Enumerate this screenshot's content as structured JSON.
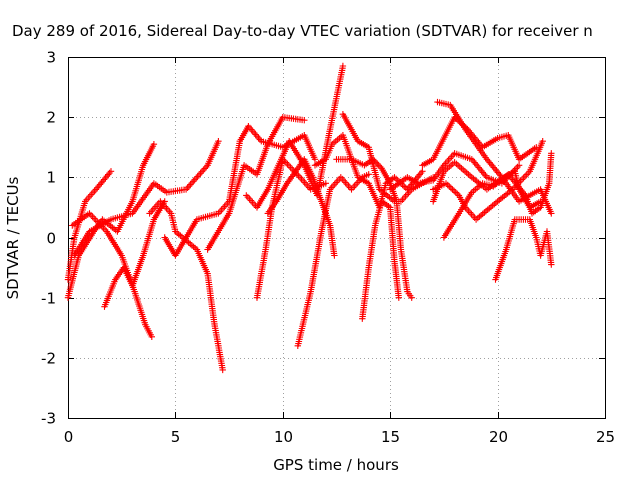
{
  "chart_data": {
    "type": "scatter",
    "title": "Day 289 of 2016, Sidereal Day-to-day VTEC variation (SDTVAR) for receiver n",
    "xlabel": "GPS time / hours",
    "ylabel": "SDTVAR / TECUs",
    "xlim": [
      0,
      25
    ],
    "ylim": [
      -3,
      3
    ],
    "xticks": [
      "0",
      "5",
      "10",
      "15",
      "20",
      "25"
    ],
    "yticks": [
      "-3",
      "-2",
      "-1",
      "0",
      "1",
      "2",
      "3"
    ],
    "grid": true,
    "marker": "plus",
    "color": "#ff0000",
    "tracks": [
      [
        [
          0.0,
          -0.7
        ],
        [
          0.3,
          0.0
        ],
        [
          0.8,
          0.6
        ],
        [
          1.3,
          0.8
        ],
        [
          2.0,
          1.1
        ]
      ],
      [
        [
          0.0,
          -1.0
        ],
        [
          0.5,
          -0.3
        ],
        [
          1.2,
          0.1
        ],
        [
          1.6,
          0.3
        ],
        [
          2.3,
          0.1
        ],
        [
          3.0,
          0.6
        ],
        [
          3.5,
          1.2
        ],
        [
          4.0,
          1.55
        ]
      ],
      [
        [
          0.3,
          -0.3
        ],
        [
          1.0,
          0.1
        ],
        [
          2.0,
          0.3
        ],
        [
          3.0,
          0.4
        ],
        [
          4.0,
          0.9
        ],
        [
          4.6,
          0.75
        ],
        [
          5.5,
          0.8
        ],
        [
          6.5,
          1.2
        ],
        [
          7.0,
          1.6
        ]
      ],
      [
        [
          0.2,
          0.2
        ],
        [
          1.0,
          0.4
        ],
        [
          1.8,
          0.1
        ],
        [
          2.5,
          -0.3
        ],
        [
          3.1,
          -0.9
        ],
        [
          3.6,
          -1.45
        ],
        [
          3.9,
          -1.65
        ]
      ],
      [
        [
          1.7,
          -1.15
        ],
        [
          2.2,
          -0.7
        ],
        [
          2.6,
          -0.5
        ],
        [
          3.0,
          -0.8
        ],
        [
          3.5,
          -0.3
        ],
        [
          4.0,
          0.3
        ],
        [
          4.5,
          0.6
        ]
      ],
      [
        [
          3.8,
          0.4
        ],
        [
          4.3,
          0.6
        ],
        [
          4.8,
          0.4
        ],
        [
          5.0,
          0.1
        ],
        [
          6.0,
          -0.2
        ],
        [
          6.5,
          -0.6
        ],
        [
          6.8,
          -1.4
        ],
        [
          7.2,
          -2.2
        ]
      ],
      [
        [
          4.5,
          0.0
        ],
        [
          5.0,
          -0.3
        ],
        [
          6.0,
          0.3
        ],
        [
          7.0,
          0.4
        ],
        [
          7.5,
          0.6
        ],
        [
          8.0,
          1.6
        ],
        [
          8.4,
          1.85
        ],
        [
          9.0,
          1.6
        ],
        [
          10.0,
          1.5
        ],
        [
          11.0,
          1.7
        ],
        [
          11.5,
          1.3
        ]
      ],
      [
        [
          6.5,
          -0.2
        ],
        [
          7.5,
          0.4
        ],
        [
          8.2,
          1.2
        ],
        [
          8.8,
          1.05
        ],
        [
          9.3,
          1.55
        ],
        [
          10.0,
          2.0
        ],
        [
          11.0,
          1.95
        ]
      ],
      [
        [
          8.8,
          -1.0
        ],
        [
          9.2,
          -0.2
        ],
        [
          9.5,
          0.5
        ],
        [
          10.0,
          1.3
        ],
        [
          10.8,
          1.0
        ],
        [
          11.3,
          0.8
        ],
        [
          12.0,
          0.9
        ]
      ],
      [
        [
          8.3,
          0.7
        ],
        [
          8.8,
          0.5
        ],
        [
          9.3,
          0.8
        ],
        [
          9.8,
          1.2
        ],
        [
          10.3,
          1.6
        ],
        [
          11.0,
          1.2
        ],
        [
          11.6,
          0.7
        ],
        [
          12.2,
          1.8
        ],
        [
          12.8,
          2.85
        ]
      ],
      [
        [
          9.3,
          0.4
        ],
        [
          9.7,
          0.6
        ],
        [
          10.2,
          0.9
        ],
        [
          10.6,
          1.1
        ],
        [
          11.0,
          1.3
        ],
        [
          11.4,
          1.0
        ],
        [
          11.8,
          0.6
        ],
        [
          12.2,
          0.2
        ],
        [
          12.4,
          -0.3
        ]
      ],
      [
        [
          11.5,
          1.2
        ],
        [
          12.0,
          1.3
        ],
        [
          12.3,
          1.55
        ],
        [
          12.8,
          1.7
        ],
        [
          13.5,
          1.0
        ],
        [
          14.0,
          0.9
        ],
        [
          14.5,
          0.5
        ],
        [
          14.8,
          0.9
        ],
        [
          15.2,
          1.0
        ],
        [
          15.8,
          0.8
        ],
        [
          16.5,
          1.1
        ]
      ],
      [
        [
          12.8,
          2.05
        ],
        [
          13.5,
          1.6
        ],
        [
          14.0,
          1.5
        ],
        [
          14.5,
          0.8
        ],
        [
          15.2,
          0.6
        ],
        [
          15.5,
          0.6
        ],
        [
          16.0,
          0.8
        ],
        [
          17.0,
          1.0
        ]
      ],
      [
        [
          12.5,
          1.3
        ],
        [
          13.2,
          1.3
        ],
        [
          13.8,
          1.2
        ],
        [
          14.2,
          1.3
        ],
        [
          14.6,
          1.15
        ],
        [
          15.0,
          0.9
        ],
        [
          15.3,
          0.6
        ],
        [
          15.5,
          -0.2
        ],
        [
          15.8,
          -0.9
        ],
        [
          16.0,
          -1.0
        ]
      ],
      [
        [
          10.7,
          -1.8
        ],
        [
          11.3,
          -0.9
        ],
        [
          11.8,
          0.1
        ],
        [
          12.2,
          0.8
        ],
        [
          12.7,
          1.0
        ],
        [
          13.2,
          0.8
        ],
        [
          13.7,
          1.0
        ],
        [
          14.0,
          1.05
        ]
      ],
      [
        [
          13.7,
          -1.35
        ],
        [
          14.0,
          -0.5
        ],
        [
          14.3,
          0.2
        ],
        [
          14.6,
          0.6
        ],
        [
          15.0,
          0.5
        ],
        [
          15.2,
          -0.4
        ],
        [
          15.4,
          -1.0
        ]
      ],
      [
        [
          15.0,
          0.8
        ],
        [
          15.8,
          1.0
        ],
        [
          16.3,
          0.9
        ],
        [
          17.0,
          0.95
        ],
        [
          17.5,
          1.2
        ],
        [
          18.0,
          1.4
        ],
        [
          18.8,
          1.3
        ],
        [
          19.5,
          1.0
        ],
        [
          20.2,
          0.9
        ],
        [
          21.0,
          1.2
        ]
      ],
      [
        [
          17.2,
          2.25
        ],
        [
          17.8,
          2.2
        ],
        [
          18.5,
          1.8
        ],
        [
          19.5,
          1.3
        ],
        [
          20.2,
          1.0
        ],
        [
          21.0,
          0.6
        ],
        [
          22.0,
          0.8
        ],
        [
          22.5,
          0.4
        ]
      ],
      [
        [
          17.0,
          0.8
        ],
        [
          17.6,
          0.9
        ],
        [
          18.2,
          0.7
        ],
        [
          18.5,
          0.5
        ],
        [
          19.0,
          0.3
        ],
        [
          20.0,
          0.6
        ],
        [
          20.7,
          0.8
        ],
        [
          21.5,
          1.1
        ],
        [
          22.1,
          1.6
        ]
      ],
      [
        [
          16.5,
          1.2
        ],
        [
          17.0,
          1.3
        ],
        [
          18.0,
          2.0
        ],
        [
          18.6,
          1.8
        ],
        [
          19.3,
          1.5
        ],
        [
          20.0,
          1.65
        ],
        [
          20.5,
          1.7
        ],
        [
          21.0,
          1.3
        ],
        [
          21.8,
          1.5
        ]
      ],
      [
        [
          17.0,
          0.6
        ],
        [
          17.5,
          1.1
        ],
        [
          18.0,
          1.25
        ],
        [
          18.8,
          1.0
        ],
        [
          19.5,
          0.8
        ],
        [
          20.3,
          1.0
        ],
        [
          20.8,
          1.1
        ],
        [
          21.0,
          0.8
        ],
        [
          21.5,
          0.5
        ],
        [
          22.0,
          0.6
        ]
      ],
      [
        [
          17.5,
          0.0
        ],
        [
          18.2,
          0.4
        ],
        [
          18.8,
          0.75
        ],
        [
          19.3,
          0.9
        ],
        [
          19.8,
          0.85
        ],
        [
          20.5,
          1.05
        ],
        [
          21.3,
          0.7
        ],
        [
          21.6,
          0.4
        ],
        [
          22.0,
          0.5
        ],
        [
          22.4,
          0.9
        ],
        [
          22.5,
          1.4
        ]
      ],
      [
        [
          19.9,
          -0.7
        ],
        [
          20.4,
          -0.2
        ],
        [
          20.8,
          0.3
        ],
        [
          21.5,
          0.3
        ],
        [
          21.8,
          0.0
        ],
        [
          22.0,
          -0.3
        ],
        [
          22.3,
          0.1
        ],
        [
          22.5,
          -0.45
        ]
      ]
    ]
  }
}
